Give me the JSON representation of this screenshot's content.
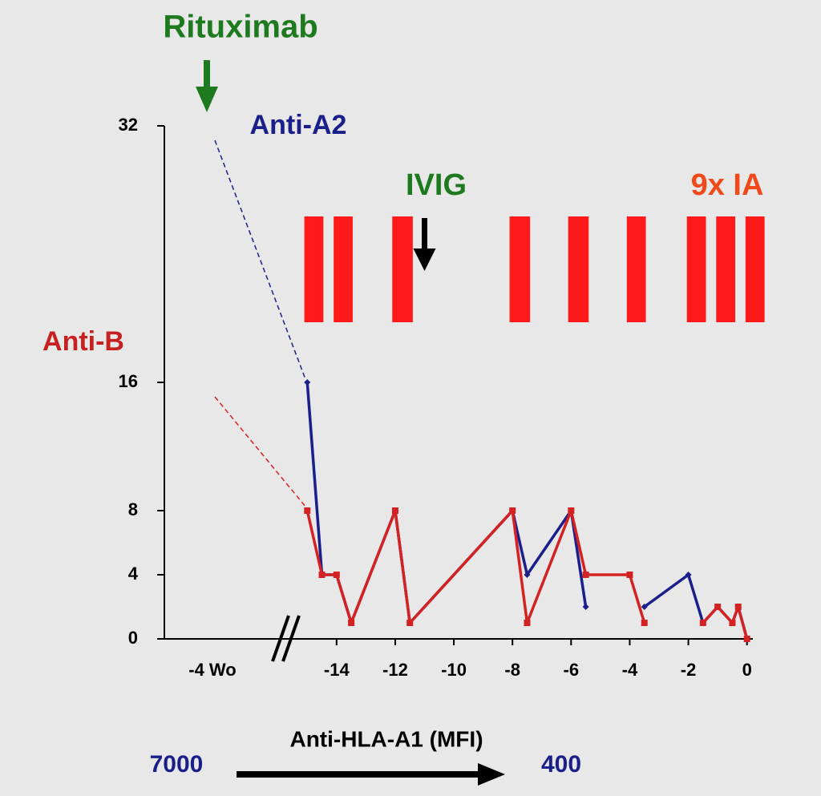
{
  "chart_data": {
    "type": "line",
    "x": [
      -15,
      -14.5,
      -14,
      -13.5,
      -12,
      -11.5,
      -8,
      -7.5,
      -6,
      -5.5,
      -4,
      -3.5,
      -2,
      -1.5,
      -1,
      -0.5,
      -0.3,
      0
    ],
    "series": [
      {
        "name": "Anti-A2",
        "color": "#1a1f8a",
        "pre_value": 32,
        "values": [
          16,
          4,
          4,
          1,
          8,
          1,
          8,
          4,
          8,
          2,
          null,
          2,
          4,
          1,
          2,
          1,
          2,
          0
        ]
      },
      {
        "name": "Anti-B",
        "color": "#d42222",
        "pre_value": 16,
        "values": [
          8,
          4,
          4,
          1,
          8,
          1,
          8,
          1,
          8,
          4,
          4,
          1,
          null,
          1,
          2,
          1,
          2,
          0
        ]
      }
    ],
    "pre_label": "-4 Wo",
    "xlim": [
      -15.8,
      0.2
    ],
    "xticks": [
      -14,
      -12,
      -10,
      -8,
      -6,
      -4,
      -2,
      0
    ],
    "ylim": [
      0,
      32
    ],
    "yticks": [
      0,
      4,
      8,
      16,
      32
    ],
    "rituximab": "Rituximab",
    "ivig": {
      "label": "IVIG",
      "x": -11
    },
    "ia": {
      "label": "9x IA",
      "color": "#ff1a1a",
      "bars": [
        [
          -15.1,
          -14.45
        ],
        [
          -14.1,
          -13.45
        ],
        [
          -12.1,
          -11.4
        ],
        [
          -8.1,
          -7.4
        ],
        [
          -6.1,
          -5.4
        ],
        [
          -4.1,
          -3.45
        ],
        [
          -2.05,
          -1.4
        ],
        [
          -1.05,
          -0.4
        ],
        [
          -0.05,
          0.6
        ]
      ]
    },
    "xlabel": "Anti-HLA-A1 (MFI)",
    "x_start_label": 7000,
    "x_end_label": 400
  }
}
